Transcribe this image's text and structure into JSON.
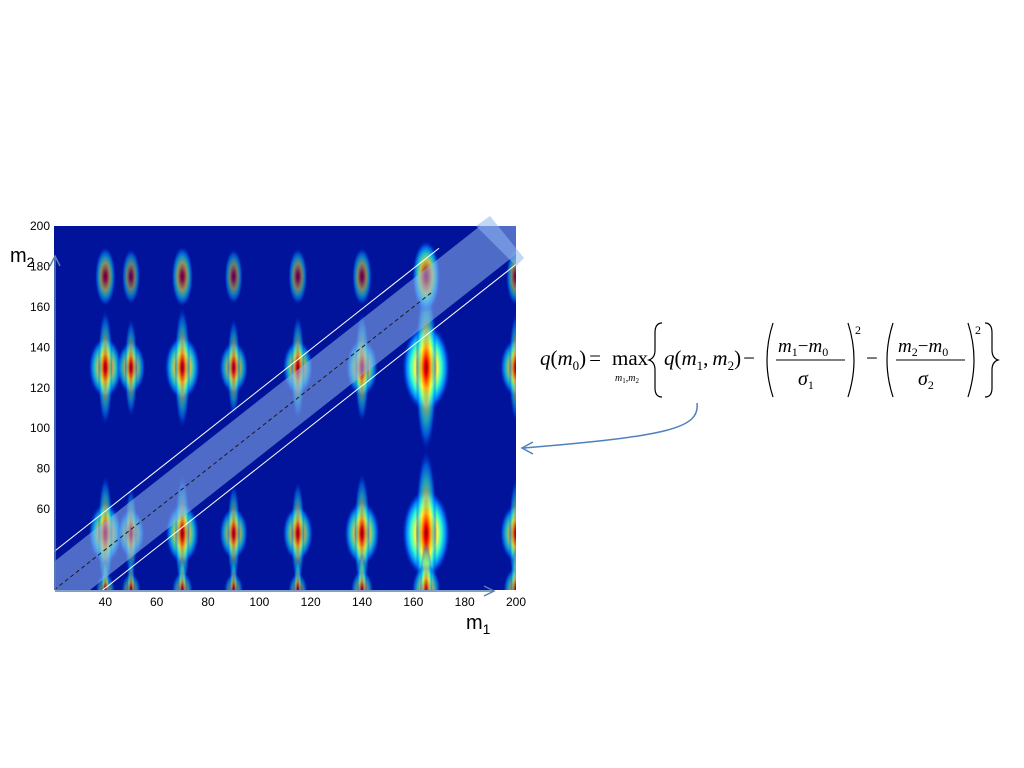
{
  "chart_data": {
    "type": "heatmap",
    "title": "",
    "xlabel": "m",
    "xlabel_subscript": "1",
    "ylabel": "m",
    "ylabel_subscript": "2",
    "xlim": [
      20,
      200
    ],
    "ylim": [
      20,
      200
    ],
    "x_ticks": [
      40,
      60,
      80,
      100,
      120,
      140,
      160,
      180,
      200
    ],
    "y_ticks": [
      60,
      80,
      100,
      120,
      140,
      160,
      180,
      200
    ],
    "colormap": "jet",
    "rows_m2": [
      130,
      48,
      20
    ],
    "columns_m1": [
      40,
      50,
      70,
      90,
      115,
      140,
      165,
      200
    ],
    "intensity": [
      [
        0.55,
        0.4,
        0.6,
        0.4,
        0.45,
        0.5,
        1.0,
        0.5
      ],
      [
        0.55,
        0.35,
        0.55,
        0.4,
        0.45,
        0.6,
        1.0,
        0.5
      ],
      [
        0.1,
        0.1,
        0.15,
        0.1,
        0.1,
        0.2,
        0.4,
        0.3
      ]
    ],
    "band": {
      "slope": 1,
      "intercept": 0,
      "line_color": "#ffffff",
      "fill": "#8fb4ee"
    }
  },
  "colors": {
    "background": "#00139a",
    "arrow": "#4f81bd"
  },
  "equation": {
    "lhs_q": "q",
    "lhs_m": "m",
    "lhs_sub": "0",
    "equals": "=",
    "op": "max",
    "op_sub": "m",
    "op_sub_1": "1",
    "op_sub_sep": ",",
    "op_sub_m2": "m",
    "op_sub_2": "2",
    "term_q": "q",
    "term_m1": "m",
    "term_m1_sub": "1",
    "term_sep": ",",
    "term_m2": "m",
    "term_m2_sub": "2",
    "minus": "−",
    "frac1_num_a": "m",
    "frac1_num_a_sub": "1",
    "frac1_num_b": "m",
    "frac1_num_b_sub": "0",
    "frac1_den": "σ",
    "frac1_den_sub": "1",
    "frac2_num_a": "m",
    "frac2_num_a_sub": "2",
    "frac2_num_b": "m",
    "frac2_num_b_sub": "0",
    "frac2_den": "σ",
    "frac2_den_sub": "2",
    "power": "2"
  }
}
